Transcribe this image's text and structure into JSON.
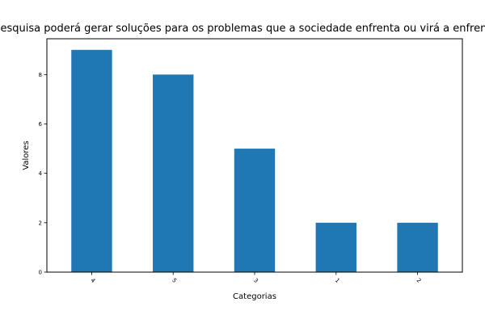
{
  "chart_data": {
    "type": "bar",
    "title": "A pesquisa poderá gerar soluções para os problemas que a sociedade enfrenta ou virá a enfrentar",
    "xlabel": "Categorias",
    "ylabel": "Valores",
    "categories": [
      "4",
      "5",
      "3",
      "1",
      "2"
    ],
    "values": [
      9,
      8,
      5,
      2,
      2
    ],
    "ylim": [
      0,
      9.45
    ],
    "yticks": [
      0,
      2,
      4,
      6,
      8
    ],
    "bar_color": "#1f77b4",
    "grid": false,
    "legend": "none"
  }
}
